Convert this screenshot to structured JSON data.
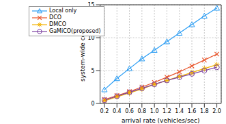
{
  "chart_data": {
    "type": "line",
    "x_label": "arrival rate (vehicles/sec)",
    "y_label": "system-wide cost",
    "x": [
      0.2,
      0.4,
      0.6,
      0.8,
      1.0,
      1.2,
      1.4,
      1.6,
      1.8,
      2.0
    ],
    "series": [
      {
        "name": "Local only",
        "color": "#2a9df4",
        "marker": "triangle",
        "values": [
          2.1,
          3.8,
          5.3,
          6.8,
          8.1,
          9.4,
          10.7,
          12.0,
          13.3,
          14.5
        ]
      },
      {
        "name": "DCO",
        "color": "#e8542a",
        "marker": "x",
        "values": [
          0.6,
          1.2,
          1.8,
          2.5,
          3.2,
          4.0,
          4.8,
          5.7,
          6.6,
          7.5
        ]
      },
      {
        "name": "DMCO",
        "color": "#f2b200",
        "marker": "asterisk",
        "values": [
          0.4,
          1.0,
          1.6,
          2.2,
          2.9,
          3.5,
          4.1,
          4.7,
          5.3,
          5.9
        ]
      },
      {
        "name": "GaMiCO(proposed)",
        "color": "#7b3fa0",
        "marker": "circle",
        "values": [
          0.5,
          1.1,
          1.7,
          2.3,
          2.9,
          3.5,
          4.0,
          4.5,
          5.0,
          5.5
        ]
      }
    ],
    "xlim": [
      0.13,
      2.07
    ],
    "xticks": [
      0.2,
      0.4,
      0.6,
      0.8,
      {
        "value": 1,
        "label": "1.0"
      },
      1.2,
      1.4,
      1.6,
      1.8,
      {
        "value": 2,
        "label": "2.0"
      }
    ],
    "ylim": [
      0,
      15
    ],
    "yticks": [
      0,
      5,
      10,
      15
    ],
    "grid": true,
    "legend": "top-left"
  }
}
